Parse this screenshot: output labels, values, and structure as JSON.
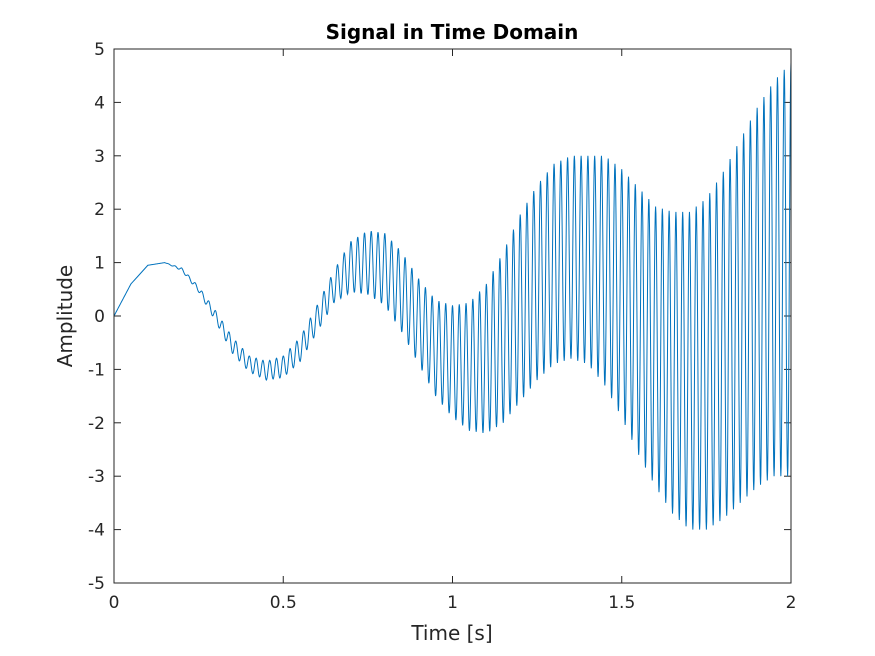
{
  "chart_data": {
    "type": "line",
    "title": "Signal in Time Domain",
    "xlabel": "Time [s]",
    "ylabel": "Amplitude",
    "xlim": [
      0,
      2
    ],
    "ylim": [
      -5,
      5
    ],
    "grid": false,
    "legend": "none",
    "x_ticks": [
      "0",
      "0.5",
      "1",
      "1.5",
      "2"
    ],
    "y_ticks": [
      "-5",
      "-4",
      "-3",
      "-2",
      "-1",
      "0",
      "1",
      "2",
      "3",
      "4",
      "5"
    ],
    "series": [
      {
        "color": "#0072BD",
        "x": [
          0,
          0.05,
          0.1,
          0.15,
          0.2,
          0.25,
          0.3,
          0.35,
          0.4,
          0.45,
          0.5,
          0.55,
          0.6,
          0.65,
          0.7,
          0.75,
          0.8,
          0.85,
          0.9,
          0.95,
          1.0,
          1.05,
          1.1,
          1.15,
          1.2,
          1.25,
          1.3,
          1.35,
          1.4,
          1.45,
          1.5,
          1.55,
          1.6,
          1.65,
          1.7,
          1.75,
          1.8,
          1.85,
          1.9,
          1.95,
          2.0
        ],
        "envelope_upper": [
          0.0,
          0.6,
          0.95,
          1.0,
          0.9,
          0.55,
          0.1,
          -0.4,
          -0.75,
          -0.85,
          -0.75,
          -0.4,
          0.2,
          0.85,
          1.4,
          1.6,
          1.55,
          1.2,
          0.7,
          0.3,
          0.2,
          0.25,
          0.6,
          1.2,
          1.9,
          2.45,
          2.85,
          3.0,
          3.0,
          3.0,
          2.75,
          2.4,
          2.05,
          1.95,
          1.95,
          2.2,
          2.7,
          3.3,
          3.9,
          4.4,
          4.75
        ],
        "envelope_lower": [
          0.0,
          0.6,
          0.95,
          1.0,
          0.85,
          0.45,
          -0.1,
          -0.7,
          -1.05,
          -1.2,
          -1.15,
          -0.85,
          -0.3,
          0.25,
          0.45,
          0.4,
          0.2,
          -0.3,
          -0.9,
          -1.5,
          -1.9,
          -2.15,
          -2.2,
          -2.0,
          -1.6,
          -1.2,
          -0.9,
          -0.8,
          -0.9,
          -1.3,
          -1.9,
          -2.6,
          -3.2,
          -3.7,
          -4.0,
          -4.0,
          -3.8,
          -3.5,
          -3.2,
          -3.0,
          -3.0
        ],
        "oscillation_hz": 50
      }
    ]
  }
}
